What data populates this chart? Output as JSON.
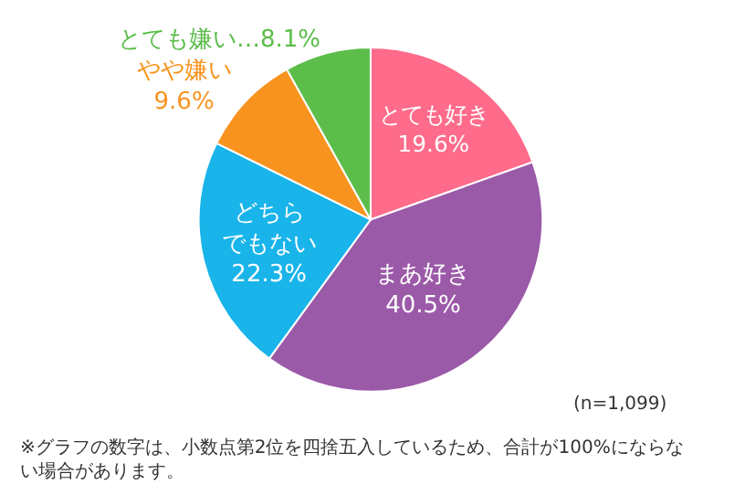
{
  "chart_data": {
    "type": "pie",
    "categories": [
      "とても好き",
      "まあ好き",
      "どちらでもない",
      "やや嫌い",
      "とても嫌い"
    ],
    "values": [
      19.6,
      40.5,
      22.3,
      9.6,
      8.1
    ],
    "colors": [
      "#ff6b8a",
      "#9b5aa8",
      "#18b4ea",
      "#f7931e",
      "#5cbd4b"
    ],
    "value_labels": [
      "19.6%",
      "40.5%",
      "22.3%",
      "9.6%",
      "…8.1%"
    ],
    "annotations": [
      "(n=1,099)",
      "※グラフの数字は、小数点第2位を四捨五入しているため、合計が100%にならない場合があります。"
    ]
  }
}
